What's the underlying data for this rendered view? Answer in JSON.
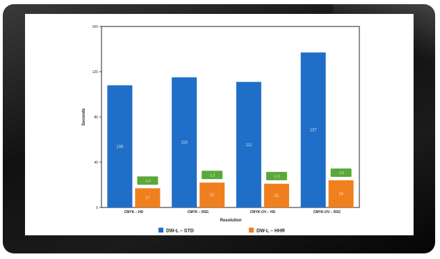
{
  "chart_data": {
    "type": "bar",
    "title": "",
    "xlabel": "Resolution",
    "ylabel": "Seconds",
    "ylim": [
      0,
      160
    ],
    "yticks": [
      "0",
      "40",
      "80",
      "120",
      "160"
    ],
    "categories": [
      "CMYK – HD",
      "CMYK – RSC",
      "CMYK-OV – HD",
      "CMYK-OV – RSC"
    ],
    "series": [
      {
        "name": "DW-L – STD",
        "color": "#1f6fc8",
        "values": [
          108,
          115,
          111,
          137
        ],
        "labels": [
          "108",
          "115",
          "111",
          "137"
        ]
      },
      {
        "name": "DW-L – HHR",
        "color": "#f07f1e",
        "values": [
          17,
          22,
          21,
          24
        ],
        "labels": [
          "17",
          "22",
          "21",
          "24"
        ]
      }
    ],
    "annotations": [
      "-1.4",
      "-1.2",
      "-1.3",
      "-1.6"
    ],
    "legend_position": "bottom",
    "grid": false
  },
  "colors": {
    "annotation_box": "#5aa83a",
    "frame": "#222222"
  }
}
